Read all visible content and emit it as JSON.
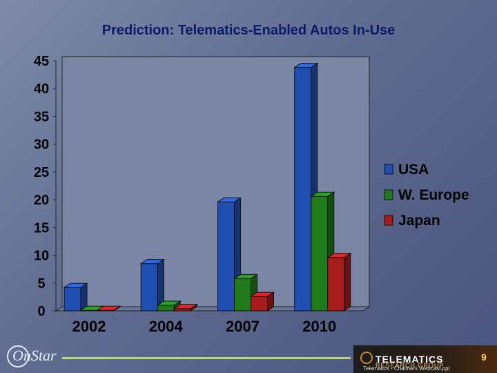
{
  "chart_data": {
    "type": "bar",
    "title": "Prediction:  Telematics-Enabled Autos In-Use",
    "xlabel": "",
    "ylabel": "",
    "categories": [
      "2002",
      "2004",
      "2007",
      "2010"
    ],
    "series": [
      {
        "name": "USA",
        "values": [
          4.2,
          8.5,
          19.6,
          43.8
        ]
      },
      {
        "name": "W. Europe",
        "values": [
          0.1,
          1.0,
          5.8,
          20.6
        ]
      },
      {
        "name": "Japan",
        "values": [
          0.1,
          0.4,
          2.6,
          9.6
        ]
      }
    ],
    "ylim": [
      0,
      45
    ],
    "yticks": [
      "0",
      "5",
      "10",
      "15",
      "20",
      "25",
      "30",
      "35",
      "40",
      "45"
    ],
    "grid": false,
    "legend": "right",
    "colors": {
      "USA": "#1f4fb0",
      "W. Europe": "#1f7a1a",
      "Japan": "#a81c1c"
    }
  },
  "footer": {
    "logo_text": "OnStar",
    "brand_title": "TELEMATICS",
    "brand_subtitle": "RESEARCH GROUP",
    "filename": "Telematics - Chalmers Webcast.ppt",
    "page_number": "9"
  },
  "colors": {
    "background": "#5f6b8f",
    "title_text": "#0a1a6a",
    "plot_area": "#7b86a4",
    "accent_line": "#b9d77a"
  }
}
